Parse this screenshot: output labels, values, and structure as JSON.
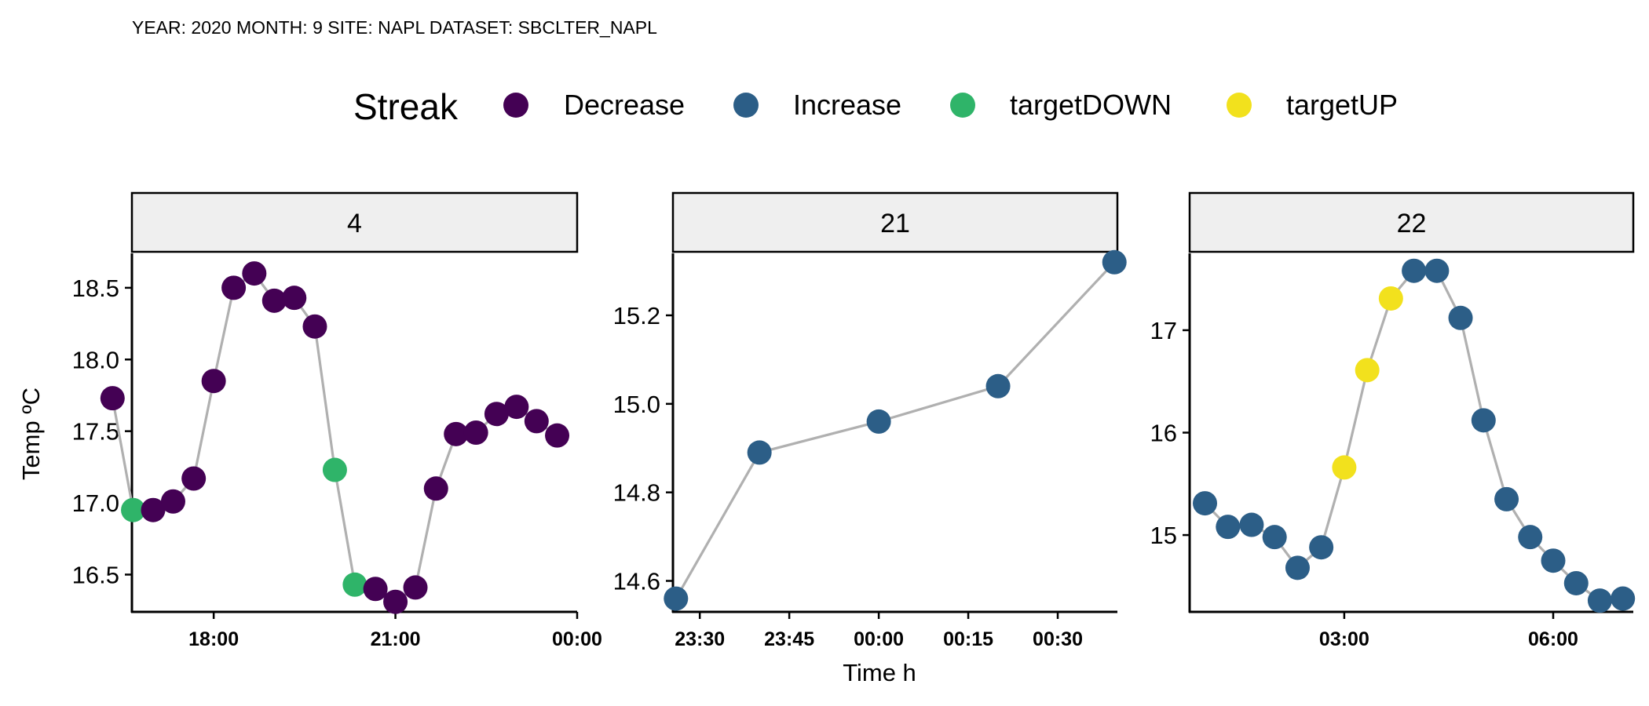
{
  "header": {
    "subtitle": "YEAR: 2020 MONTH: 9 SITE:  NAPL DATASET:  SBCLTER_NAPL"
  },
  "chart_data": {
    "type": "scatter",
    "facet_by": "day",
    "xlabel": "Time h",
    "ylabel": "Temp ºC",
    "legend": {
      "title": "Streak",
      "placement": "top",
      "items": [
        {
          "label": "Decrease",
          "color": "#440154"
        },
        {
          "label": "Increase",
          "color": "#2C5E87"
        },
        {
          "label": "targetDOWN",
          "color": "#2FB469"
        },
        {
          "label": "targetUP",
          "color": "#F2E11D"
        }
      ]
    },
    "line_color": "#B0B0B0",
    "grid": false,
    "panels": [
      {
        "strip": "4",
        "x_unit": "hours after midnight of day 4",
        "xlim": [
          16.65,
          24.0
        ],
        "ylim": [
          16.24,
          18.74
        ],
        "x_ticks": [
          {
            "x": 18,
            "label": "18:00"
          },
          {
            "x": 21,
            "label": "21:00"
          },
          {
            "x": 24,
            "label": "00:00"
          }
        ],
        "y_ticks": [
          {
            "y": 16.5,
            "label": "16.5"
          },
          {
            "y": 17.0,
            "label": "17.0"
          },
          {
            "y": 17.5,
            "label": "17.5"
          },
          {
            "y": 18.0,
            "label": "18.0"
          },
          {
            "y": 18.5,
            "label": "18.5"
          }
        ],
        "points": [
          {
            "x": 16.33,
            "y": 17.73,
            "streak": "Decrease"
          },
          {
            "x": 16.67,
            "y": 16.95,
            "streak": "targetDOWN"
          },
          {
            "x": 17.0,
            "y": 16.95,
            "streak": "Decrease"
          },
          {
            "x": 17.33,
            "y": 17.01,
            "streak": "Decrease"
          },
          {
            "x": 17.67,
            "y": 17.17,
            "streak": "Decrease"
          },
          {
            "x": 18.0,
            "y": 17.85,
            "streak": "Decrease"
          },
          {
            "x": 18.33,
            "y": 18.5,
            "streak": "Decrease"
          },
          {
            "x": 18.67,
            "y": 18.6,
            "streak": "Decrease"
          },
          {
            "x": 19.0,
            "y": 18.41,
            "streak": "Decrease"
          },
          {
            "x": 19.33,
            "y": 18.43,
            "streak": "Decrease"
          },
          {
            "x": 19.67,
            "y": 18.23,
            "streak": "Decrease"
          },
          {
            "x": 20.0,
            "y": 17.23,
            "streak": "targetDOWN"
          },
          {
            "x": 20.33,
            "y": 16.43,
            "streak": "targetDOWN"
          },
          {
            "x": 20.67,
            "y": 16.4,
            "streak": "Decrease"
          },
          {
            "x": 21.0,
            "y": 16.31,
            "streak": "Decrease"
          },
          {
            "x": 21.33,
            "y": 16.41,
            "streak": "Decrease"
          },
          {
            "x": 21.67,
            "y": 17.1,
            "streak": "Decrease"
          },
          {
            "x": 22.0,
            "y": 17.48,
            "streak": "Decrease"
          },
          {
            "x": 22.33,
            "y": 17.49,
            "streak": "Decrease"
          },
          {
            "x": 22.67,
            "y": 17.62,
            "streak": "Decrease"
          },
          {
            "x": 23.0,
            "y": 17.67,
            "streak": "Decrease"
          },
          {
            "x": 23.33,
            "y": 17.57,
            "streak": "Decrease"
          },
          {
            "x": 23.67,
            "y": 17.47,
            "streak": "Decrease"
          }
        ]
      },
      {
        "strip": "21",
        "x_unit": "minutes relative to midnight between day 21 and day 22",
        "xlim": [
          -34.5,
          40.0
        ],
        "ylim": [
          14.53,
          15.34
        ],
        "x_ticks": [
          {
            "x": -30,
            "label": "23:30"
          },
          {
            "x": -15,
            "label": "23:45"
          },
          {
            "x": 0,
            "label": "00:00"
          },
          {
            "x": 15,
            "label": "00:15"
          },
          {
            "x": 30,
            "label": "00:30"
          }
        ],
        "y_ticks": [
          {
            "y": 14.6,
            "label": "14.6"
          },
          {
            "y": 14.8,
            "label": "14.8"
          },
          {
            "y": 15.0,
            "label": "15.0"
          },
          {
            "y": 15.2,
            "label": "15.2"
          }
        ],
        "points": [
          {
            "x": -34.0,
            "y": 14.56,
            "streak": "Increase"
          },
          {
            "x": -20.0,
            "y": 14.89,
            "streak": "Increase"
          },
          {
            "x": 0.0,
            "y": 14.96,
            "streak": "Increase"
          },
          {
            "x": 20.0,
            "y": 15.04,
            "streak": "Increase"
          },
          {
            "x": 39.5,
            "y": 15.32,
            "streak": "Increase"
          }
        ]
      },
      {
        "strip": "22",
        "x_unit": "hours after midnight of day 22",
        "xlim": [
          0.78,
          7.15
        ],
        "ylim": [
          14.25,
          17.75
        ],
        "x_ticks": [
          {
            "x": 3,
            "label": "03:00"
          },
          {
            "x": 6,
            "label": "06:00"
          }
        ],
        "y_ticks": [
          {
            "y": 15,
            "label": "15"
          },
          {
            "y": 16,
            "label": "16"
          },
          {
            "y": 17,
            "label": "17"
          }
        ],
        "points": [
          {
            "x": 1.0,
            "y": 15.31,
            "streak": "Increase"
          },
          {
            "x": 1.33,
            "y": 15.08,
            "streak": "Increase"
          },
          {
            "x": 1.67,
            "y": 15.1,
            "streak": "Increase"
          },
          {
            "x": 2.0,
            "y": 14.98,
            "streak": "Increase"
          },
          {
            "x": 2.33,
            "y": 14.68,
            "streak": "Increase"
          },
          {
            "x": 2.67,
            "y": 14.88,
            "streak": "Increase"
          },
          {
            "x": 3.0,
            "y": 15.66,
            "streak": "targetUP"
          },
          {
            "x": 3.33,
            "y": 16.61,
            "streak": "targetUP"
          },
          {
            "x": 3.67,
            "y": 17.31,
            "streak": "targetUP"
          },
          {
            "x": 4.0,
            "y": 17.58,
            "streak": "Increase"
          },
          {
            "x": 4.33,
            "y": 17.58,
            "streak": "Increase"
          },
          {
            "x": 4.67,
            "y": 17.12,
            "streak": "Increase"
          },
          {
            "x": 5.0,
            "y": 16.12,
            "streak": "Increase"
          },
          {
            "x": 5.33,
            "y": 15.35,
            "streak": "Increase"
          },
          {
            "x": 5.67,
            "y": 14.98,
            "streak": "Increase"
          },
          {
            "x": 6.0,
            "y": 14.75,
            "streak": "Increase"
          },
          {
            "x": 6.33,
            "y": 14.53,
            "streak": "Increase"
          },
          {
            "x": 6.67,
            "y": 14.36,
            "streak": "Increase"
          },
          {
            "x": 7.0,
            "y": 14.38,
            "streak": "Increase"
          }
        ]
      }
    ]
  }
}
